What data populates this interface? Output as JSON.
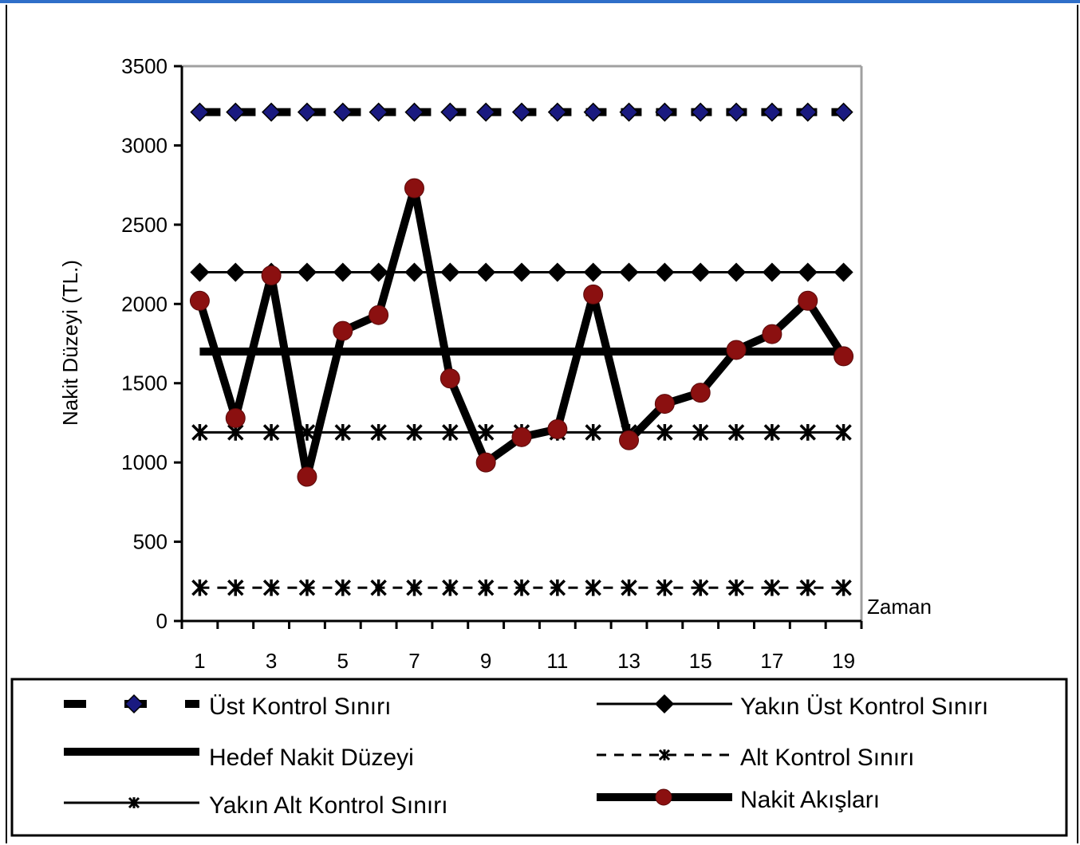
{
  "chart_data": {
    "type": "line",
    "title": "",
    "xlabel": "Zaman",
    "ylabel": "Nakit Düzeyi (TL.)",
    "ylim": [
      0,
      3500
    ],
    "y_ticks": [
      0,
      500,
      1000,
      1500,
      2000,
      2500,
      3000,
      3500
    ],
    "x": [
      1,
      2,
      3,
      4,
      5,
      6,
      7,
      8,
      9,
      10,
      11,
      12,
      13,
      14,
      15,
      16,
      17,
      18,
      19
    ],
    "x_tick_labels": [
      "1",
      "3",
      "5",
      "7",
      "9",
      "11",
      "13",
      "15",
      "17",
      "19"
    ],
    "grid": false,
    "legend_position": "bottom",
    "series": [
      {
        "name": "Üst Kontrol Sınırı",
        "values": [
          3210,
          3210,
          3210,
          3210,
          3210,
          3210,
          3210,
          3210,
          3210,
          3210,
          3210,
          3210,
          3210,
          3210,
          3210,
          3210,
          3210,
          3210,
          3210
        ]
      },
      {
        "name": "Yakın Üst Kontrol Sınırı",
        "values": [
          2200,
          2200,
          2200,
          2200,
          2200,
          2200,
          2200,
          2200,
          2200,
          2200,
          2200,
          2200,
          2200,
          2200,
          2200,
          2200,
          2200,
          2200,
          2200
        ]
      },
      {
        "name": "Hedef Nakit Düzeyi",
        "values": [
          1700,
          1700,
          1700,
          1700,
          1700,
          1700,
          1700,
          1700,
          1700,
          1700,
          1700,
          1700,
          1700,
          1700,
          1700,
          1700,
          1700,
          1700,
          1700
        ]
      },
      {
        "name": "Alt Kontrol Sınırı",
        "values": [
          210,
          210,
          210,
          210,
          210,
          210,
          210,
          210,
          210,
          210,
          210,
          210,
          210,
          210,
          210,
          210,
          210,
          210,
          210
        ]
      },
      {
        "name": "Yakın Alt Kontrol Sınırı",
        "values": [
          1190,
          1190,
          1190,
          1190,
          1190,
          1190,
          1190,
          1190,
          1190,
          1190,
          1190,
          1190,
          1190,
          1190,
          1190,
          1190,
          1190,
          1190,
          1190
        ]
      },
      {
        "name": "Nakit Akışları",
        "values": [
          2020,
          1280,
          2180,
          910,
          1830,
          1930,
          2730,
          1530,
          1000,
          1160,
          1210,
          2060,
          1140,
          1370,
          1440,
          1710,
          1810,
          2020,
          1670
        ]
      }
    ],
    "colors": {
      "line": "#000000",
      "diamond_fill": "#1a1a80",
      "cash_marker": "#8b1010",
      "plot_border": "#a0a0a0"
    }
  }
}
